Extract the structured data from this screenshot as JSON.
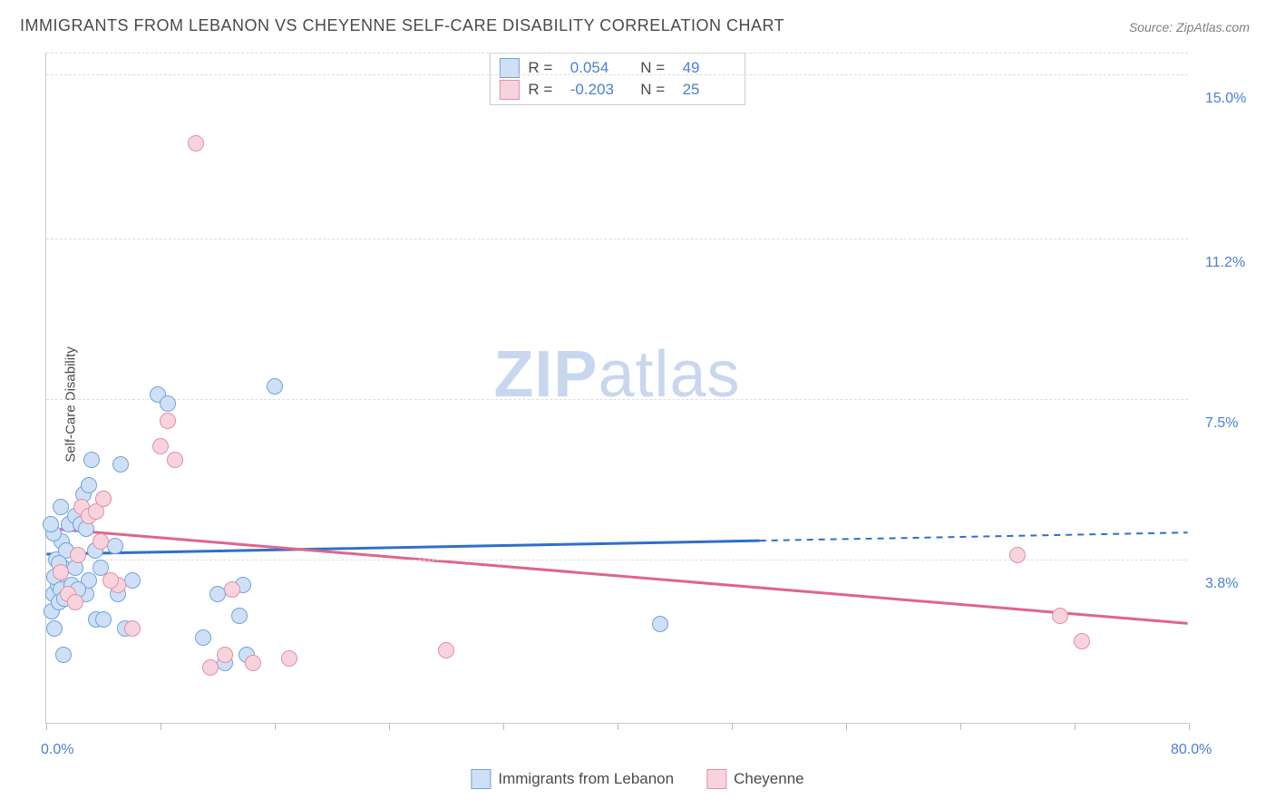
{
  "title": "IMMIGRANTS FROM LEBANON VS CHEYENNE SELF-CARE DISABILITY CORRELATION CHART",
  "source": "Source: ZipAtlas.com",
  "ylabel": "Self-Care Disability",
  "watermark_bold": "ZIP",
  "watermark_rest": "atlas",
  "chart": {
    "type": "scatter",
    "xlim": [
      0,
      80
    ],
    "ylim": [
      0,
      15.5
    ],
    "x_label_min": "0.0%",
    "x_label_max": "80.0%",
    "y_gridlines": [
      3.8,
      7.5,
      11.2,
      15.0
    ],
    "y_grid_labels": [
      "3.8%",
      "7.5%",
      "11.2%",
      "15.0%"
    ],
    "x_ticks": [
      0,
      8,
      16,
      24,
      32,
      40,
      48,
      56,
      64,
      72,
      80
    ],
    "grid_color": "#dddddd",
    "axis_color": "#cccccc",
    "background": "#ffffff",
    "point_radius": 9,
    "series": [
      {
        "name": "Immigrants from Lebanon",
        "fill": "#cfe0f5",
        "stroke": "#6fa3e0",
        "R": "0.054",
        "N": "49",
        "trend": {
          "y_at_x0": 3.9,
          "y_at_x80": 4.4,
          "solid_until_x": 50,
          "color": "#2f6fc9",
          "width": 3
        },
        "points": [
          [
            0.5,
            3.0
          ],
          [
            0.8,
            3.2
          ],
          [
            0.6,
            3.4
          ],
          [
            1.0,
            3.1
          ],
          [
            1.2,
            3.6
          ],
          [
            0.7,
            3.8
          ],
          [
            0.4,
            2.6
          ],
          [
            0.9,
            2.8
          ],
          [
            1.1,
            4.2
          ],
          [
            1.4,
            4.0
          ],
          [
            0.5,
            4.4
          ],
          [
            1.6,
            4.6
          ],
          [
            1.0,
            5.0
          ],
          [
            2.0,
            4.8
          ],
          [
            2.4,
            4.6
          ],
          [
            0.6,
            2.2
          ],
          [
            2.8,
            3.0
          ],
          [
            3.0,
            3.3
          ],
          [
            3.5,
            2.4
          ],
          [
            3.8,
            3.6
          ],
          [
            4.0,
            5.2
          ],
          [
            4.8,
            4.1
          ],
          [
            5.5,
            2.2
          ],
          [
            1.8,
            3.2
          ],
          [
            2.0,
            3.6
          ],
          [
            1.3,
            2.9
          ],
          [
            0.9,
            3.7
          ],
          [
            2.8,
            4.5
          ],
          [
            6.0,
            3.3
          ],
          [
            7.8,
            7.6
          ],
          [
            8.5,
            7.4
          ],
          [
            5.2,
            6.0
          ],
          [
            3.2,
            6.1
          ],
          [
            4.0,
            2.4
          ],
          [
            5.0,
            3.0
          ],
          [
            12.0,
            3.0
          ],
          [
            13.5,
            2.5
          ],
          [
            14.0,
            1.6
          ],
          [
            16.0,
            7.8
          ],
          [
            11.0,
            2.0
          ],
          [
            12.5,
            1.4
          ],
          [
            13.8,
            3.2
          ],
          [
            1.2,
            1.6
          ],
          [
            2.6,
            5.3
          ],
          [
            3.4,
            4.0
          ],
          [
            0.3,
            4.6
          ],
          [
            43.0,
            2.3
          ],
          [
            2.2,
            3.1
          ],
          [
            3.0,
            5.5
          ]
        ]
      },
      {
        "name": "Cheyenne",
        "fill": "#f7d4dd",
        "stroke": "#e38fa6",
        "R": "-0.203",
        "N": "25",
        "trend": {
          "y_at_x0": 4.5,
          "y_at_x80": 2.3,
          "solid_until_x": 80,
          "color": "#e0648c",
          "width": 3
        },
        "points": [
          [
            1.0,
            3.5
          ],
          [
            1.5,
            3.0
          ],
          [
            2.0,
            2.8
          ],
          [
            2.5,
            5.0
          ],
          [
            3.0,
            4.8
          ],
          [
            3.5,
            4.9
          ],
          [
            4.0,
            5.2
          ],
          [
            5.0,
            3.2
          ],
          [
            6.0,
            2.2
          ],
          [
            4.5,
            3.3
          ],
          [
            8.0,
            6.4
          ],
          [
            9.0,
            6.1
          ],
          [
            8.5,
            7.0
          ],
          [
            10.5,
            13.4
          ],
          [
            11.5,
            1.3
          ],
          [
            12.5,
            1.6
          ],
          [
            13.0,
            3.1
          ],
          [
            14.5,
            1.4
          ],
          [
            17.0,
            1.5
          ],
          [
            28.0,
            1.7
          ],
          [
            68.0,
            3.9
          ],
          [
            71.0,
            2.5
          ],
          [
            72.5,
            1.9
          ],
          [
            3.8,
            4.2
          ],
          [
            2.2,
            3.9
          ]
        ]
      }
    ]
  },
  "stats_legend_labels": {
    "R": "R =",
    "N": "N ="
  },
  "bottom_legend": [
    {
      "label": "Immigrants from Lebanon",
      "fill": "#cfe0f5",
      "stroke": "#6fa3e0"
    },
    {
      "label": "Cheyenne",
      "fill": "#f7d4dd",
      "stroke": "#e38fa6"
    }
  ]
}
